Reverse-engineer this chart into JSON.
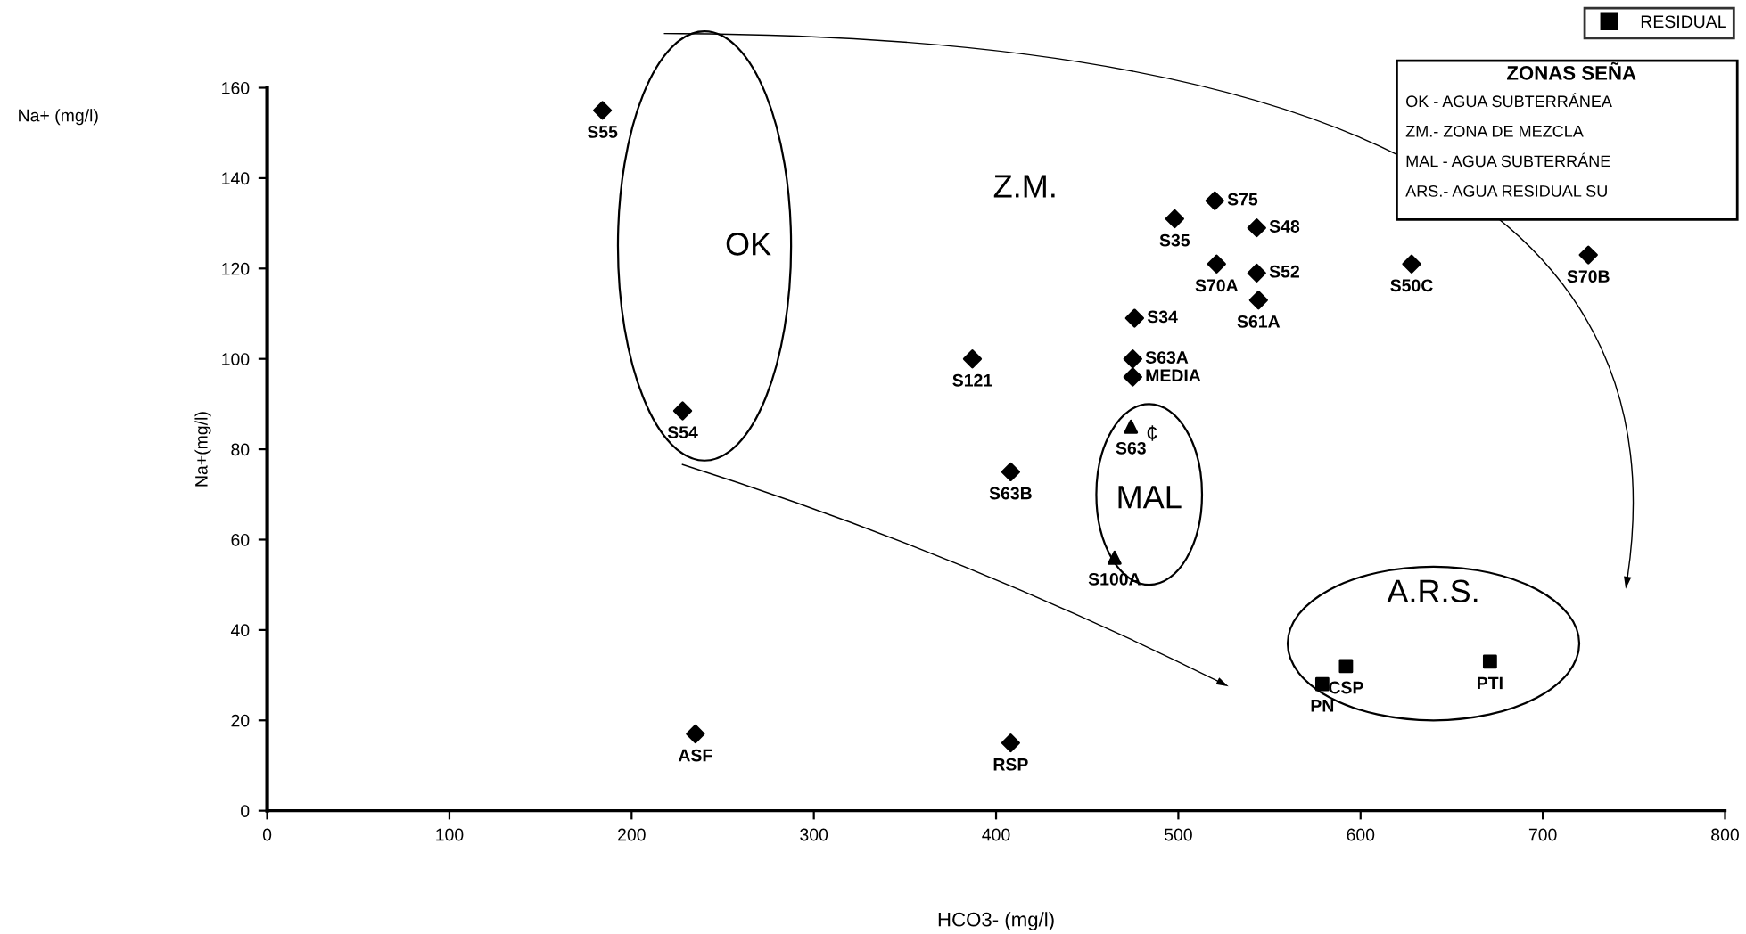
{
  "chart_data": {
    "type": "scatter",
    "xlabel": "HCO3- (mg/l)",
    "ylabel": "Na+(mg/l)",
    "subtitle": "Na+ (mg/l)",
    "xlim": [
      0,
      800
    ],
    "xticks": [
      0,
      100,
      200,
      300,
      400,
      500,
      600,
      700,
      800
    ],
    "ylim": [
      0,
      160
    ],
    "yticks": [
      0,
      20,
      40,
      60,
      80,
      100,
      120,
      140,
      160
    ],
    "grid": false,
    "legend": "top right",
    "series": [
      {
        "color": "#000000",
        "marker": "diamond",
        "x": [
          184,
          228,
          498,
          520,
          543,
          521,
          543,
          544,
          628,
          725,
          476,
          475,
          475,
          387,
          408,
          235,
          408
        ],
        "values": [
          155,
          88.5,
          131,
          135,
          129,
          121,
          119,
          113,
          121,
          123,
          109,
          100,
          96,
          100,
          75,
          17,
          15
        ],
        "value_labels": [
          "S55",
          "S54",
          "S35",
          "S75",
          "S48",
          "S70A",
          "S52",
          "S61A",
          "S50C",
          "S70B",
          "S34",
          "S63A",
          "MEDIA",
          "S121",
          "S63B",
          "ASF",
          "RSP"
        ]
      },
      {
        "color": "#000000",
        "marker": "triangle",
        "x": [
          474,
          465
        ],
        "values": [
          85,
          56
        ],
        "value_labels": [
          "S63",
          "S100A"
        ]
      },
      {
        "name": "RESIDUAL",
        "color": "#000000",
        "marker": "square",
        "x": [
          592,
          579,
          671
        ],
        "values": [
          32,
          28,
          33
        ],
        "value_labels": [
          "CSP",
          "PN",
          "PTI"
        ]
      }
    ],
    "annotations": [
      "OK",
      "Z.M.",
      "MAL",
      "A.R.S.",
      "¢",
      "ZONAS SEÑA",
      "OK - AGUA SUBTERRÁNEA",
      "ZM.- ZONA DE MEZCLA",
      "MAL - AGUA SUBTERRÁNE",
      "ARS.- AGUA RESIDUAL SU"
    ]
  }
}
